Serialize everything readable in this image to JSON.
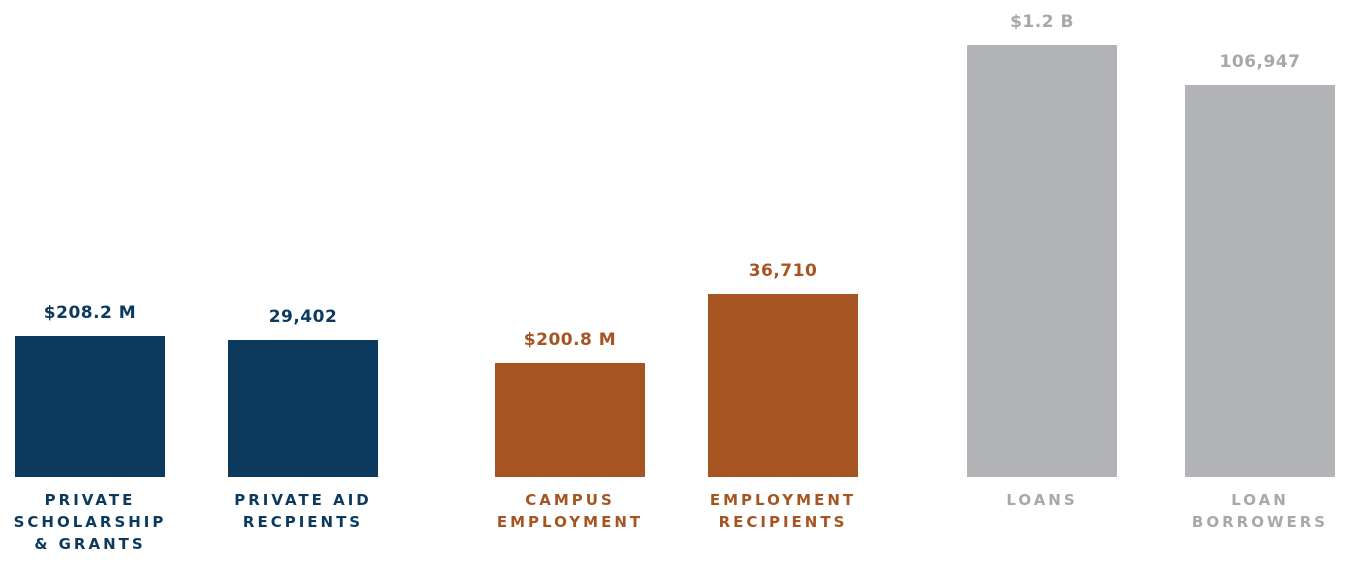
{
  "colors": {
    "navy": "#0b3a5e",
    "rust": "#a65422",
    "gray": "#b2b3b7",
    "gray_text": "#a7a8ab"
  },
  "chart_data": {
    "type": "bar",
    "title": "",
    "xlabel": "",
    "ylabel": "",
    "grid": false,
    "bars": [
      {
        "category_lines": [
          "PRIVATE",
          "SCHOLARSHIP",
          "& GRANTS"
        ],
        "display_label": "$208.2 M",
        "value": 208.2,
        "unit": "$M",
        "group": "private",
        "color": "navy",
        "relative_height": 0.326
      },
      {
        "category_lines": [
          "PRIVATE AID",
          "RECPIENTS"
        ],
        "display_label": "29,402",
        "value": 29402,
        "unit": "students",
        "group": "private",
        "color": "navy",
        "relative_height": 0.318
      },
      {
        "category_lines": [
          "CAMPUS",
          "EMPLOYMENT"
        ],
        "display_label": "$200.8 M",
        "value": 200.8,
        "unit": "$M",
        "group": "employment",
        "color": "rust",
        "relative_height": 0.263
      },
      {
        "category_lines": [
          "EMPLOYMENT",
          "RECIPIENTS"
        ],
        "display_label": "36,710",
        "value": 36710,
        "unit": "students",
        "group": "employment",
        "color": "rust",
        "relative_height": 0.424
      },
      {
        "category_lines": [
          "LOANS"
        ],
        "display_label": "$1.2 B",
        "value": 1200,
        "unit": "$M",
        "group": "loans",
        "color": "gray",
        "relative_height": 1.0
      },
      {
        "category_lines": [
          "LOAN",
          "BORROWERS"
        ],
        "display_label": "106,947",
        "value": 106947,
        "unit": "students",
        "group": "loans",
        "color": "gray",
        "relative_height": 0.907
      }
    ]
  }
}
